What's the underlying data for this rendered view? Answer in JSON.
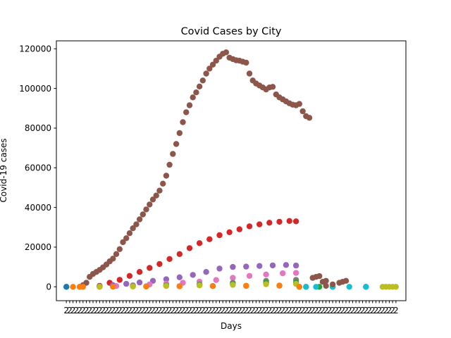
{
  "chart_data": {
    "type": "scatter",
    "title": "Covid Cases by City",
    "xlabel": "Days",
    "ylabel": "Covid-19 cases",
    "xlim": [
      -3,
      102
    ],
    "ylim": [
      -7000,
      124000
    ],
    "grid": false,
    "legend": "none",
    "y_ticks": [
      0,
      20000,
      40000,
      60000,
      80000,
      100000,
      120000
    ],
    "x_tick_labels_note": "x tick labels are dense overlapping date strings; only a leading '2' is legible",
    "x_tick_count": 100,
    "x_tick_label_prefix": "2",
    "series": [
      {
        "color": "#8c564b",
        "x": [
          5,
          6,
          7,
          8,
          9,
          10,
          11,
          12,
          13,
          14,
          15,
          16,
          17,
          18,
          19,
          20,
          21,
          22,
          23,
          24,
          25,
          26,
          27,
          28,
          29,
          30,
          31,
          32,
          33,
          34,
          35,
          36,
          37,
          38,
          39,
          40,
          41,
          42,
          43,
          44,
          45,
          46,
          47,
          48,
          49,
          50,
          51,
          52,
          53,
          54,
          55,
          56,
          57,
          58,
          59,
          60,
          61,
          62,
          63,
          64,
          65,
          66,
          67,
          68,
          69,
          70,
          71,
          72,
          73,
          74,
          75,
          76,
          77,
          78
        ],
        "y": [
          800,
          2000,
          5000,
          6500,
          7500,
          8500,
          9800,
          11200,
          12800,
          14200,
          16500,
          19000,
          22500,
          24500,
          27000,
          29500,
          31500,
          34000,
          36500,
          39000,
          41500,
          44000,
          46000,
          48500,
          52000,
          56000,
          61500,
          67000,
          72000,
          77500,
          83000,
          88000,
          91500,
          95500,
          98000,
          101000,
          104000,
          107500,
          110000,
          112000,
          114000,
          116000,
          117500,
          118200,
          115500,
          114800,
          114200,
          114000,
          113500,
          113000,
          107500,
          104000,
          102500,
          101500,
          100500,
          99500,
          100500,
          100800,
          97000,
          95500,
          94500,
          93500,
          92500,
          91800,
          91500,
          92200,
          88500,
          86000,
          85200,
          4500,
          5000,
          5400,
          2500,
          3000
        ],
        "x_offset_note": "tail values beyond day 69 are low-level trailing points"
      },
      {
        "color": "#d62728",
        "x": [
          10,
          13,
          16,
          19,
          22,
          25,
          28,
          31,
          34,
          37,
          40,
          43,
          46,
          49,
          52,
          55,
          58,
          61,
          64,
          67,
          69
        ],
        "y": [
          500,
          2000,
          3500,
          5500,
          7500,
          9500,
          11500,
          14000,
          16500,
          19500,
          22000,
          24000,
          26000,
          27500,
          29000,
          30500,
          31500,
          32300,
          32800,
          33200,
          33000
        ]
      },
      {
        "color": "#9467bd",
        "x": [
          10,
          14,
          18,
          22,
          26,
          30,
          34,
          38,
          42,
          46,
          50,
          54,
          58,
          62,
          66,
          69
        ],
        "y": [
          200,
          800,
          1500,
          2200,
          3000,
          3800,
          4800,
          6000,
          7500,
          9200,
          10000,
          10200,
          10500,
          10800,
          11000,
          10700
        ]
      },
      {
        "color": "#e377c2",
        "x": [
          10,
          15,
          20,
          25,
          30,
          35,
          40,
          45,
          50,
          55,
          60,
          65,
          69
        ],
        "y": [
          100,
          400,
          800,
          1200,
          1600,
          2000,
          2600,
          3400,
          4500,
          5500,
          6200,
          6800,
          7000
        ]
      },
      {
        "color": "#7f7f7f",
        "x": [
          10,
          20,
          30,
          40,
          50,
          60,
          69
        ],
        "y": [
          50,
          300,
          700,
          1200,
          2000,
          3000,
          3500
        ]
      },
      {
        "color": "#2ca02c",
        "x": [
          0,
          10,
          20,
          30,
          40,
          50,
          60,
          69,
          72,
          76
        ],
        "y": [
          0,
          100,
          300,
          600,
          1000,
          1500,
          2000,
          2200,
          0,
          0
        ]
      },
      {
        "color": "#bcbd22",
        "x": [
          10,
          20,
          30,
          40,
          50,
          60,
          69
        ],
        "y": [
          0,
          150,
          400,
          700,
          1000,
          1300,
          1500
        ]
      },
      {
        "color": "#1f77b4",
        "x": [
          0,
          4,
          14,
          24,
          34,
          44,
          54,
          64,
          70,
          80,
          90
        ],
        "y": [
          0,
          0,
          100,
          200,
          300,
          400,
          500,
          600,
          0,
          0,
          0
        ]
      },
      {
        "color": "#ff7f0e",
        "x": [
          2,
          4,
          5,
          14,
          24,
          34,
          44,
          54,
          64,
          70,
          80,
          90
        ],
        "y": [
          0,
          0,
          0,
          50,
          150,
          250,
          350,
          450,
          550,
          0,
          0,
          0
        ]
      },
      {
        "color": "#17becf",
        "x": [
          72,
          75,
          80,
          85,
          90
        ],
        "y": [
          0,
          0,
          0,
          0,
          0
        ]
      },
      {
        "color": "#8c564b",
        "x": [
          78,
          80,
          82,
          83,
          84
        ],
        "y": [
          500,
          1200,
          2000,
          2500,
          3000
        ]
      },
      {
        "color": "#bcbd22",
        "x": [
          95,
          96,
          97,
          98,
          99
        ],
        "y": [
          0,
          0,
          0,
          0,
          0
        ]
      }
    ]
  }
}
